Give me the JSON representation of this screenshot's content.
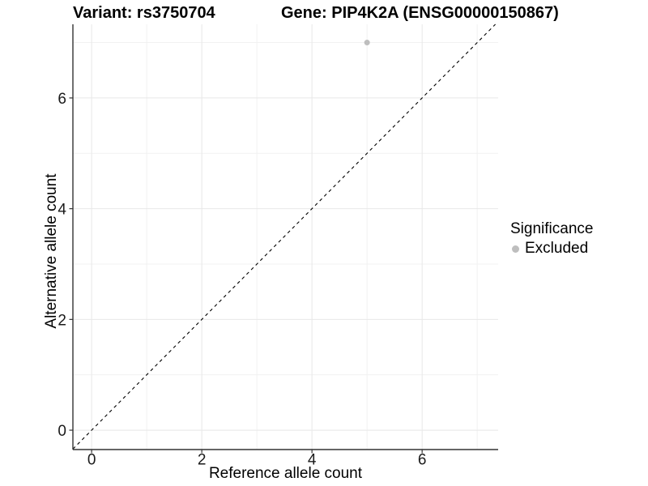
{
  "chart_data": {
    "type": "scatter",
    "title_left": "Variant: rs3750704",
    "title_right": "Gene: PIP4K2A (ENSG00000150867)",
    "xlabel": "Reference allele count",
    "ylabel": "Alternative allele count",
    "xlim": [
      -0.34,
      7.38
    ],
    "ylim": [
      -0.35,
      7.33
    ],
    "xticks": [
      0,
      2,
      4,
      6
    ],
    "yticks": [
      0,
      2,
      4,
      6
    ],
    "x_minor_gridlines": [
      1,
      3,
      5,
      7
    ],
    "y_minor_gridlines": [
      1,
      3,
      5,
      7
    ],
    "grid": "major and minor, light gray on white",
    "reference_line": {
      "type": "identity y=x",
      "style": "dashed",
      "color": "#000000"
    },
    "series": [
      {
        "name": "Excluded",
        "color": "#bebebe",
        "points": [
          {
            "x": 5,
            "y": 7
          }
        ]
      }
    ],
    "legend": {
      "title": "Significance",
      "position": "right",
      "entries": [
        {
          "label": "Excluded",
          "color": "#bebebe"
        }
      ]
    }
  },
  "colors": {
    "background": "#ffffff",
    "grid_major": "#e8e8e8",
    "grid_minor": "#f1f1f1",
    "axis_line": "#333333",
    "tick": "#333333",
    "tick_label": "#1a1a1a",
    "point": "#bebebe"
  }
}
